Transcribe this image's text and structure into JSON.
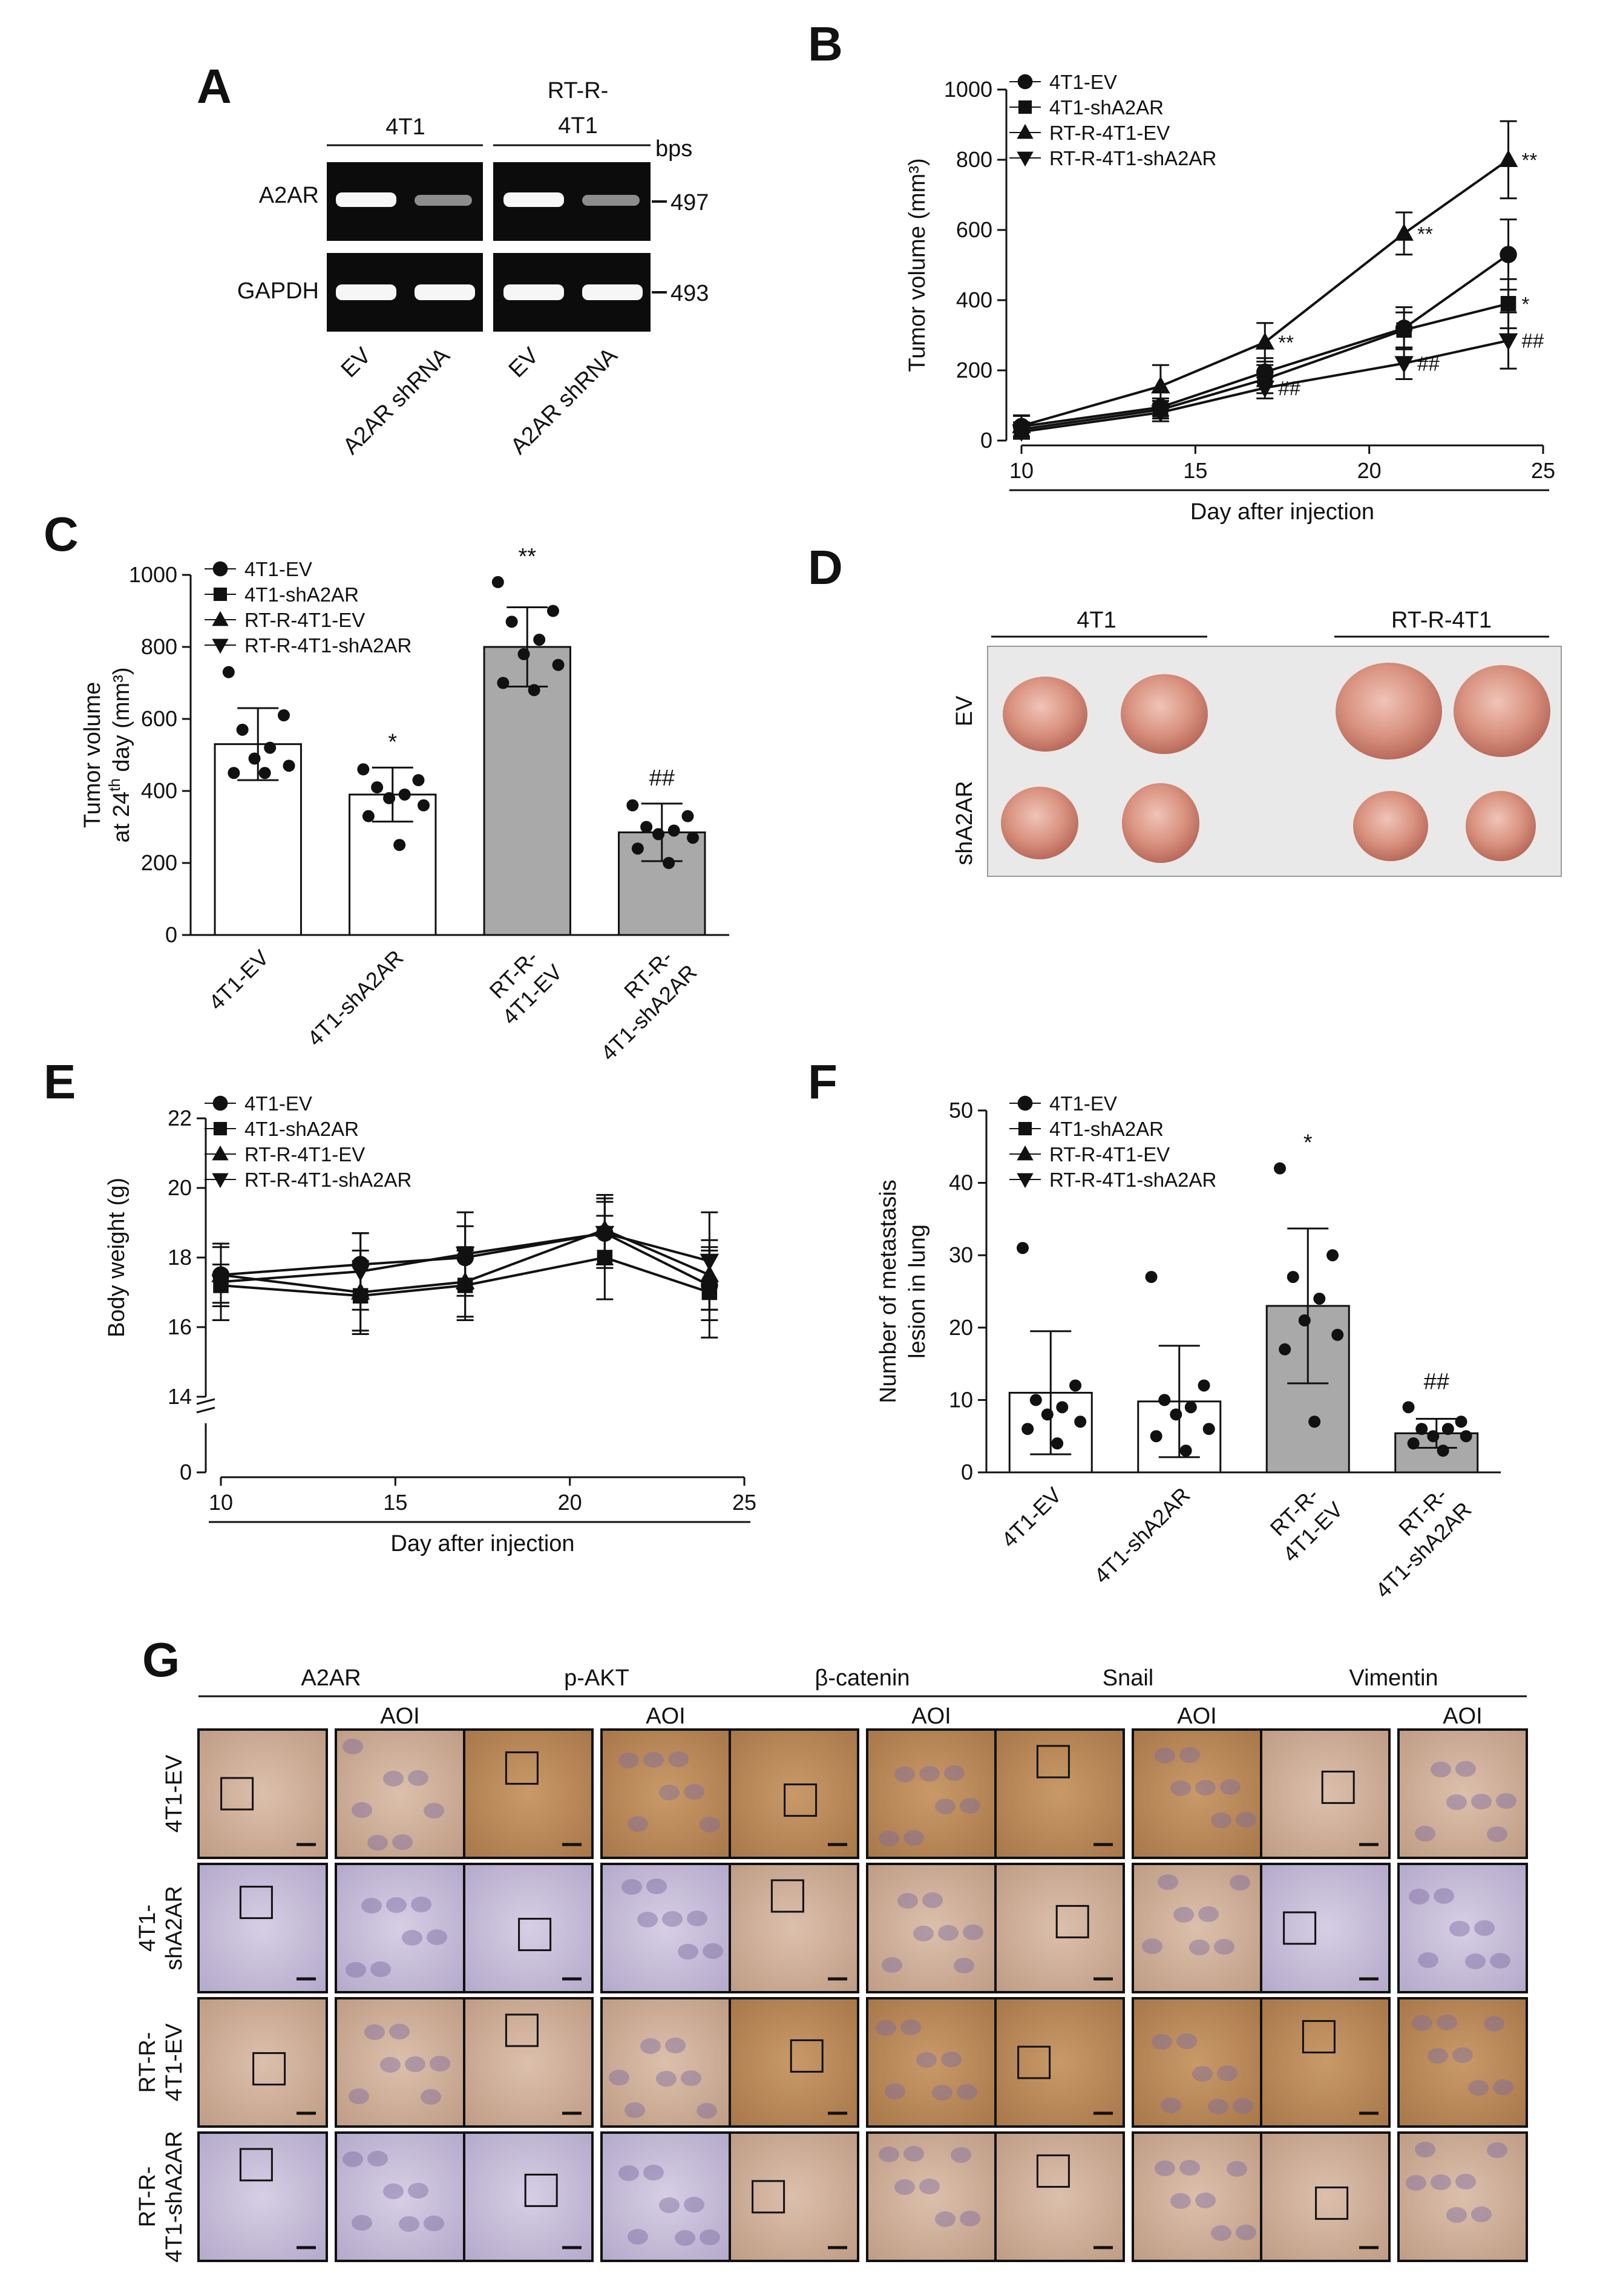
{
  "colors": {
    "gray_bar": "#a9a9a9",
    "white_bar": "#ffffff",
    "ink": "#111111",
    "gel_band": "#f4f4f4",
    "gel_bg": "#0c0c0c",
    "box_bg": "#e9e9e9"
  },
  "panel_A": {
    "letter": "A",
    "groups": [
      "4T1",
      "RT-R-4T1"
    ],
    "group2_lines": [
      "RT-R-",
      "4T1"
    ],
    "unit": "bps",
    "rows": [
      {
        "gene": "A2AR",
        "size": "497"
      },
      {
        "gene": "GAPDH",
        "size": "493"
      }
    ],
    "lanes": [
      "EV",
      "A2AR shRNA",
      "EV",
      "A2AR shRNA"
    ]
  },
  "panel_D": {
    "letter": "D",
    "col_groups": [
      "4T1",
      "RT-R-4T1"
    ],
    "row_labels": [
      "EV",
      "shA2AR"
    ]
  },
  "panel_G": {
    "letter": "G",
    "markers": [
      "A2AR",
      "p-AKT",
      "β-catenin",
      "Snail",
      "Vimentin"
    ],
    "aoi_label": "AOI",
    "rows": [
      {
        "lines": [
          "4T1-EV"
        ]
      },
      {
        "lines": [
          "4T1-",
          "shA2AR"
        ]
      },
      {
        "lines": [
          "RT-R-",
          "4T1-EV"
        ]
      },
      {
        "lines": [
          "RT-R-",
          "4T1-shA2AR"
        ]
      }
    ]
  },
  "chart_data": [
    {
      "panel": "B",
      "type": "line",
      "ylabel": "Tumor volume (mm³)",
      "xlabel": "Day after injection",
      "xlim": [
        10,
        25
      ],
      "ylim": [
        0,
        1000
      ],
      "xticks": [
        10,
        15,
        20,
        25
      ],
      "yticks": [
        0,
        200,
        400,
        600,
        800,
        1000
      ],
      "x": [
        10,
        14,
        17,
        21,
        24
      ],
      "series": [
        {
          "name": "4T1-EV",
          "marker": "circle",
          "values": [
            40,
            95,
            195,
            320,
            530
          ],
          "errors": [
            30,
            25,
            40,
            60,
            100
          ],
          "annotations": [
            "",
            "",
            "",
            "",
            ""
          ]
        },
        {
          "name": "4T1-shA2AR",
          "marker": "square",
          "values": [
            32,
            88,
            175,
            315,
            390
          ],
          "errors": [
            20,
            25,
            40,
            50,
            70
          ],
          "annotations": [
            "",
            "",
            "",
            "",
            "*"
          ]
        },
        {
          "name": "RT-R-4T1-EV",
          "marker": "triangle-up",
          "values": [
            42,
            155,
            280,
            590,
            800
          ],
          "errors": [
            30,
            60,
            55,
            60,
            110
          ],
          "annotations": [
            "",
            "",
            "**",
            "**",
            "**"
          ]
        },
        {
          "name": "RT-R-4T1-shA2AR",
          "marker": "triangle-down",
          "values": [
            25,
            80,
            150,
            220,
            285
          ],
          "errors": [
            20,
            25,
            30,
            45,
            80
          ],
          "annotations": [
            "",
            "",
            "##",
            "##",
            "##"
          ]
        }
      ]
    },
    {
      "panel": "C",
      "type": "bar",
      "ylabel_lines": [
        "Tumor volume",
        "at 24th day (mm³)"
      ],
      "ylim": [
        0,
        1000
      ],
      "yticks": [
        0,
        200,
        400,
        600,
        800,
        1000
      ],
      "legend": [
        "4T1-EV",
        "4T1-shA2AR",
        "RT-R-4T1-EV",
        "RT-R-4T1-shA2AR"
      ],
      "bars": [
        {
          "label_lines": [
            "4T1-EV"
          ],
          "value": 530,
          "error": 100,
          "fill": "white",
          "sig": "",
          "points": [
            730,
            610,
            570,
            520,
            490,
            470,
            450,
            450
          ]
        },
        {
          "label_lines": [
            "4T1-shA2AR"
          ],
          "value": 390,
          "error": 75,
          "fill": "white",
          "sig": "*",
          "points": [
            460,
            430,
            410,
            390,
            380,
            360,
            330,
            250
          ]
        },
        {
          "label_lines": [
            "RT-R-",
            "4T1-EV"
          ],
          "value": 800,
          "error": 110,
          "fill": "gray",
          "sig": "**",
          "points": [
            980,
            900,
            870,
            820,
            780,
            750,
            700,
            680
          ]
        },
        {
          "label_lines": [
            "RT-R-",
            "4T1-shA2AR"
          ],
          "value": 285,
          "error": 80,
          "fill": "gray",
          "sig": "##",
          "points": [
            360,
            330,
            300,
            290,
            280,
            270,
            240,
            200
          ]
        }
      ]
    },
    {
      "panel": "E",
      "type": "line",
      "ylabel": "Body weight (g)",
      "xlabel": "Day after injection",
      "xlim": [
        10,
        25
      ],
      "ylim": [
        14,
        22
      ],
      "xticks": [
        10,
        15,
        20,
        25
      ],
      "yticks": [
        14,
        16,
        18,
        20,
        22
      ],
      "y_break_tick": 0,
      "x": [
        10,
        14,
        17,
        21,
        24
      ],
      "series": [
        {
          "name": "4T1-EV",
          "marker": "circle",
          "values": [
            17.5,
            17.8,
            18.0,
            18.7,
            17.2
          ],
          "errors": [
            0.9,
            0.9,
            0.9,
            0.9,
            1.0
          ]
        },
        {
          "name": "4T1-shA2AR",
          "marker": "square",
          "values": [
            17.2,
            16.9,
            17.2,
            18.0,
            17.0
          ],
          "errors": [
            0.6,
            1.0,
            1.0,
            1.2,
            1.3
          ]
        },
        {
          "name": "RT-R-4T1-EV",
          "marker": "triangle-up",
          "values": [
            17.5,
            17.0,
            17.3,
            18.8,
            17.5
          ],
          "errors": [
            0.8,
            1.2,
            1.0,
            1.0,
            1.0
          ]
        },
        {
          "name": "RT-R-4T1-shA2AR",
          "marker": "triangle-down",
          "values": [
            17.3,
            17.6,
            18.1,
            18.7,
            17.9
          ],
          "errors": [
            1.1,
            1.1,
            1.2,
            1.0,
            1.4
          ]
        }
      ]
    },
    {
      "panel": "F",
      "type": "bar",
      "ylabel_lines": [
        "Number of metastasis",
        "lesion in lung"
      ],
      "ylim": [
        0,
        50
      ],
      "yticks": [
        0,
        10,
        20,
        30,
        40,
        50
      ],
      "legend": [
        "4T1-EV",
        "4T1-shA2AR",
        "RT-R-4T1-EV",
        "RT-R-4T1-shA2AR"
      ],
      "bars": [
        {
          "label_lines": [
            "4T1-EV"
          ],
          "value": 11,
          "error": 8.5,
          "fill": "white",
          "sig": "",
          "points": [
            31,
            12,
            10,
            9,
            8,
            7,
            6,
            4
          ]
        },
        {
          "label_lines": [
            "4T1-shA2AR"
          ],
          "value": 9.8,
          "error": 7.7,
          "fill": "white",
          "sig": "",
          "points": [
            27,
            12,
            10,
            9,
            8,
            6,
            5,
            3
          ]
        },
        {
          "label_lines": [
            "RT-R-",
            "4T1-EV"
          ],
          "value": 23,
          "error": 10.7,
          "fill": "gray",
          "sig": "*",
          "points": [
            42,
            30,
            27,
            24,
            21,
            19,
            17,
            7
          ]
        },
        {
          "label_lines": [
            "RT-R-",
            "4T1-shA2AR"
          ],
          "value": 5.4,
          "error": 2,
          "fill": "gray",
          "sig": "##",
          "points": [
            9,
            7,
            6,
            6,
            5,
            5,
            4,
            3
          ]
        }
      ]
    }
  ]
}
